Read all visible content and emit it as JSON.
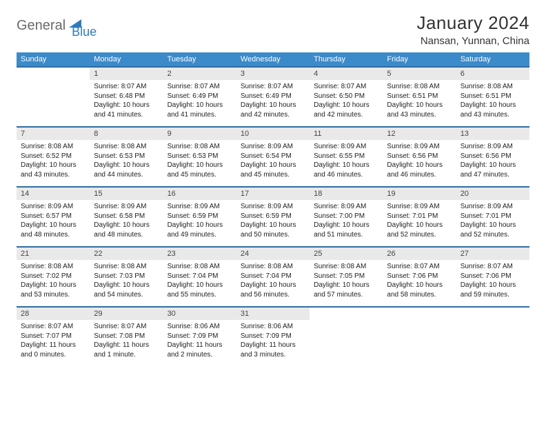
{
  "logo": {
    "part1": "General",
    "part2": "Blue",
    "triangle_color": "#2f7bbf"
  },
  "title": "January 2024",
  "location": "Nansan, Yunnan, China",
  "colors": {
    "header_bg": "#3b8aca",
    "header_text": "#ffffff",
    "daynum_bg": "#e9e9e9",
    "daynum_border": "#2f6da3",
    "body_text": "#222222"
  },
  "day_names": [
    "Sunday",
    "Monday",
    "Tuesday",
    "Wednesday",
    "Thursday",
    "Friday",
    "Saturday"
  ],
  "weeks": [
    {
      "nums": [
        "",
        "1",
        "2",
        "3",
        "4",
        "5",
        "6"
      ],
      "cells": [
        null,
        {
          "sr": "Sunrise: 8:07 AM",
          "ss": "Sunset: 6:48 PM",
          "d1": "Daylight: 10 hours",
          "d2": "and 41 minutes."
        },
        {
          "sr": "Sunrise: 8:07 AM",
          "ss": "Sunset: 6:49 PM",
          "d1": "Daylight: 10 hours",
          "d2": "and 41 minutes."
        },
        {
          "sr": "Sunrise: 8:07 AM",
          "ss": "Sunset: 6:49 PM",
          "d1": "Daylight: 10 hours",
          "d2": "and 42 minutes."
        },
        {
          "sr": "Sunrise: 8:07 AM",
          "ss": "Sunset: 6:50 PM",
          "d1": "Daylight: 10 hours",
          "d2": "and 42 minutes."
        },
        {
          "sr": "Sunrise: 8:08 AM",
          "ss": "Sunset: 6:51 PM",
          "d1": "Daylight: 10 hours",
          "d2": "and 43 minutes."
        },
        {
          "sr": "Sunrise: 8:08 AM",
          "ss": "Sunset: 6:51 PM",
          "d1": "Daylight: 10 hours",
          "d2": "and 43 minutes."
        }
      ]
    },
    {
      "nums": [
        "7",
        "8",
        "9",
        "10",
        "11",
        "12",
        "13"
      ],
      "cells": [
        {
          "sr": "Sunrise: 8:08 AM",
          "ss": "Sunset: 6:52 PM",
          "d1": "Daylight: 10 hours",
          "d2": "and 43 minutes."
        },
        {
          "sr": "Sunrise: 8:08 AM",
          "ss": "Sunset: 6:53 PM",
          "d1": "Daylight: 10 hours",
          "d2": "and 44 minutes."
        },
        {
          "sr": "Sunrise: 8:08 AM",
          "ss": "Sunset: 6:53 PM",
          "d1": "Daylight: 10 hours",
          "d2": "and 45 minutes."
        },
        {
          "sr": "Sunrise: 8:09 AM",
          "ss": "Sunset: 6:54 PM",
          "d1": "Daylight: 10 hours",
          "d2": "and 45 minutes."
        },
        {
          "sr": "Sunrise: 8:09 AM",
          "ss": "Sunset: 6:55 PM",
          "d1": "Daylight: 10 hours",
          "d2": "and 46 minutes."
        },
        {
          "sr": "Sunrise: 8:09 AM",
          "ss": "Sunset: 6:56 PM",
          "d1": "Daylight: 10 hours",
          "d2": "and 46 minutes."
        },
        {
          "sr": "Sunrise: 8:09 AM",
          "ss": "Sunset: 6:56 PM",
          "d1": "Daylight: 10 hours",
          "d2": "and 47 minutes."
        }
      ]
    },
    {
      "nums": [
        "14",
        "15",
        "16",
        "17",
        "18",
        "19",
        "20"
      ],
      "cells": [
        {
          "sr": "Sunrise: 8:09 AM",
          "ss": "Sunset: 6:57 PM",
          "d1": "Daylight: 10 hours",
          "d2": "and 48 minutes."
        },
        {
          "sr": "Sunrise: 8:09 AM",
          "ss": "Sunset: 6:58 PM",
          "d1": "Daylight: 10 hours",
          "d2": "and 48 minutes."
        },
        {
          "sr": "Sunrise: 8:09 AM",
          "ss": "Sunset: 6:59 PM",
          "d1": "Daylight: 10 hours",
          "d2": "and 49 minutes."
        },
        {
          "sr": "Sunrise: 8:09 AM",
          "ss": "Sunset: 6:59 PM",
          "d1": "Daylight: 10 hours",
          "d2": "and 50 minutes."
        },
        {
          "sr": "Sunrise: 8:09 AM",
          "ss": "Sunset: 7:00 PM",
          "d1": "Daylight: 10 hours",
          "d2": "and 51 minutes."
        },
        {
          "sr": "Sunrise: 8:09 AM",
          "ss": "Sunset: 7:01 PM",
          "d1": "Daylight: 10 hours",
          "d2": "and 52 minutes."
        },
        {
          "sr": "Sunrise: 8:09 AM",
          "ss": "Sunset: 7:01 PM",
          "d1": "Daylight: 10 hours",
          "d2": "and 52 minutes."
        }
      ]
    },
    {
      "nums": [
        "21",
        "22",
        "23",
        "24",
        "25",
        "26",
        "27"
      ],
      "cells": [
        {
          "sr": "Sunrise: 8:08 AM",
          "ss": "Sunset: 7:02 PM",
          "d1": "Daylight: 10 hours",
          "d2": "and 53 minutes."
        },
        {
          "sr": "Sunrise: 8:08 AM",
          "ss": "Sunset: 7:03 PM",
          "d1": "Daylight: 10 hours",
          "d2": "and 54 minutes."
        },
        {
          "sr": "Sunrise: 8:08 AM",
          "ss": "Sunset: 7:04 PM",
          "d1": "Daylight: 10 hours",
          "d2": "and 55 minutes."
        },
        {
          "sr": "Sunrise: 8:08 AM",
          "ss": "Sunset: 7:04 PM",
          "d1": "Daylight: 10 hours",
          "d2": "and 56 minutes."
        },
        {
          "sr": "Sunrise: 8:08 AM",
          "ss": "Sunset: 7:05 PM",
          "d1": "Daylight: 10 hours",
          "d2": "and 57 minutes."
        },
        {
          "sr": "Sunrise: 8:07 AM",
          "ss": "Sunset: 7:06 PM",
          "d1": "Daylight: 10 hours",
          "d2": "and 58 minutes."
        },
        {
          "sr": "Sunrise: 8:07 AM",
          "ss": "Sunset: 7:06 PM",
          "d1": "Daylight: 10 hours",
          "d2": "and 59 minutes."
        }
      ]
    },
    {
      "nums": [
        "28",
        "29",
        "30",
        "31",
        "",
        "",
        ""
      ],
      "cells": [
        {
          "sr": "Sunrise: 8:07 AM",
          "ss": "Sunset: 7:07 PM",
          "d1": "Daylight: 11 hours",
          "d2": "and 0 minutes."
        },
        {
          "sr": "Sunrise: 8:07 AM",
          "ss": "Sunset: 7:08 PM",
          "d1": "Daylight: 11 hours",
          "d2": "and 1 minute."
        },
        {
          "sr": "Sunrise: 8:06 AM",
          "ss": "Sunset: 7:09 PM",
          "d1": "Daylight: 11 hours",
          "d2": "and 2 minutes."
        },
        {
          "sr": "Sunrise: 8:06 AM",
          "ss": "Sunset: 7:09 PM",
          "d1": "Daylight: 11 hours",
          "d2": "and 3 minutes."
        },
        null,
        null,
        null
      ]
    }
  ]
}
